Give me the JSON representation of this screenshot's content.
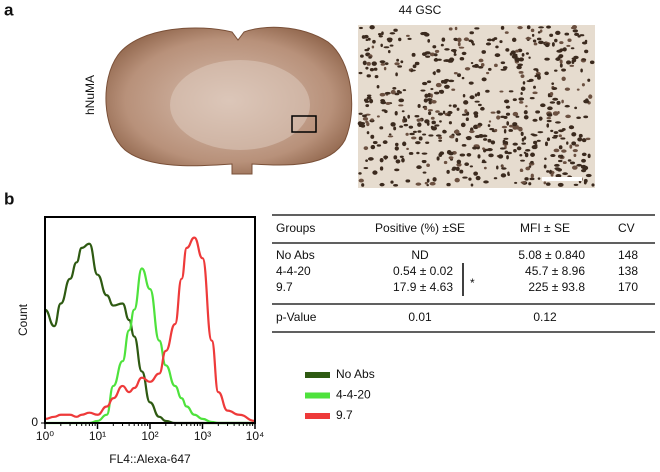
{
  "panel_a": {
    "label": "a",
    "title": "44 GSC",
    "stain": "hNuMA"
  },
  "panel_b_label": "b",
  "chart_data": {
    "type": "line",
    "xlabel": "FL4::Alexa-647",
    "ylabel": "Count",
    "xscale": "log",
    "x": [
      1,
      1.5,
      2,
      3,
      4,
      5,
      7,
      10,
      15,
      20,
      30,
      40,
      50,
      70,
      100,
      150,
      200,
      300,
      400,
      500,
      700,
      1000,
      1500,
      2000,
      3000,
      5000,
      10000
    ],
    "xlim": [
      1,
      10000
    ],
    "xticks": [
      {
        "value": 1,
        "label": "10⁰"
      },
      {
        "value": 10,
        "label": "10¹"
      },
      {
        "value": 100,
        "label": "10²"
      },
      {
        "value": 1000,
        "label": "10³"
      },
      {
        "value": 10000,
        "label": "10⁴"
      }
    ],
    "ylim": [
      0,
      100
    ],
    "yticks": [
      0
    ],
    "series": [
      {
        "name": "No Abs",
        "color": "#2e5a12",
        "values": [
          55,
          47,
          58,
          70,
          78,
          85,
          87,
          72,
          62,
          57,
          58,
          50,
          42,
          25,
          10,
          3,
          1,
          0,
          0,
          0,
          0,
          0,
          0,
          0,
          0,
          0,
          0
        ]
      },
      {
        "name": "4-4-20",
        "color": "#4ee23c",
        "values": [
          0,
          0,
          0,
          0,
          0,
          0,
          0,
          1,
          4,
          18,
          30,
          45,
          55,
          75,
          65,
          40,
          28,
          18,
          12,
          8,
          4,
          2,
          0.5,
          0,
          0,
          0,
          0
        ]
      },
      {
        "name": "9.7",
        "color": "#ee3a3a",
        "values": [
          2,
          3,
          4,
          4,
          3,
          4,
          5,
          4,
          8,
          12,
          18,
          15,
          17,
          22,
          20,
          24,
          35,
          48,
          70,
          85,
          90,
          80,
          40,
          15,
          6,
          4,
          1
        ]
      }
    ],
    "legend": "right"
  },
  "table": {
    "header": [
      "Groups",
      "Positive (%) ±SE",
      "MFI ± SE",
      "CV"
    ],
    "rows": [
      [
        "No Abs",
        "ND",
        "5.08 ± 0.840",
        "148"
      ],
      [
        "4-4-20",
        "0.54 ± 0.02",
        "45.7 ± 8.96",
        "138"
      ],
      [
        "9.7",
        "17.9 ± 4.63",
        "225 ± 93.8",
        "170"
      ]
    ],
    "significance": "*",
    "footer": [
      "p-Value",
      "0.01",
      "0.12"
    ]
  }
}
